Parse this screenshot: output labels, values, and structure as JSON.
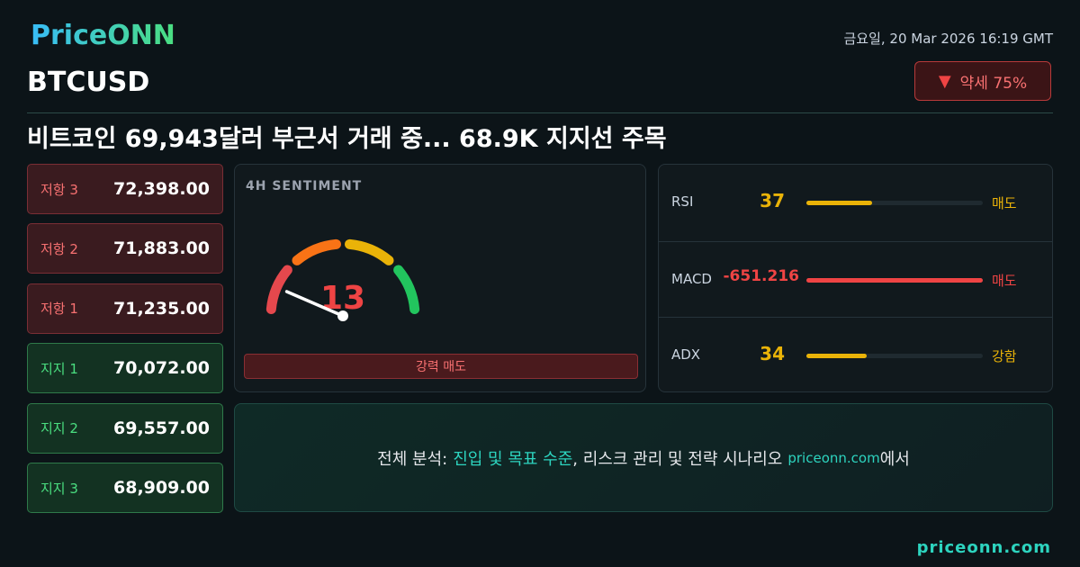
{
  "brand": "PriceONN",
  "datetime": "금요일, 20 Mar 2026 16:19 GMT",
  "symbol": "BTCUSD",
  "badge": "약세 75%",
  "headline": "비트코인 69,943달러 부근서 거래 중... 68.9K 지지선 주목",
  "levels": [
    {
      "label": "저항 3",
      "value": "72,398.00",
      "kind": "resistance"
    },
    {
      "label": "저항 2",
      "value": "71,883.00",
      "kind": "resistance"
    },
    {
      "label": "저항 1",
      "value": "71,235.00",
      "kind": "resistance"
    },
    {
      "label": "지지 1",
      "value": "70,072.00",
      "kind": "support"
    },
    {
      "label": "지지 2",
      "value": "69,557.00",
      "kind": "support"
    },
    {
      "label": "지지 3",
      "value": "68,909.00",
      "kind": "support"
    }
  ],
  "sentiment": {
    "title": "4H SENTIMENT",
    "score": 13,
    "label": "강력 매도"
  },
  "indicators": [
    {
      "name": "RSI",
      "value": 37,
      "signal": "매도",
      "color": "#eab308"
    },
    {
      "name": "MACD",
      "value": -651.216,
      "signal": "매도",
      "color": "#ef4444"
    },
    {
      "name": "ADX",
      "value": 34,
      "signal": "강함",
      "color": "#eab308"
    }
  ],
  "cta": {
    "parts": [
      "전체 분석:",
      "진입 및 목표 수준",
      ", 리스크 관리 및 전략 시나리오",
      "priceonn.com",
      "에서"
    ]
  },
  "footer": "priceonn.com"
}
